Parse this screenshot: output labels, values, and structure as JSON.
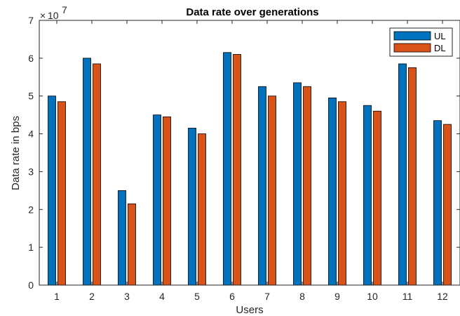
{
  "chart_data": {
    "type": "bar",
    "title": "Data rate over generations",
    "xlabel": "Users",
    "ylabel": "Data rate in bps",
    "y_exponent_base": "10",
    "y_exponent_power": "7",
    "y_exponent": 7,
    "categories": [
      "1",
      "2",
      "3",
      "4",
      "5",
      "6",
      "7",
      "8",
      "9",
      "10",
      "11",
      "12"
    ],
    "yticks": [
      "0",
      "1",
      "2",
      "3",
      "4",
      "5",
      "6",
      "7"
    ],
    "ylim": [
      0,
      7
    ],
    "legend_position": "top-right",
    "grid": false,
    "series": [
      {
        "name": "UL",
        "color": "#0072BD",
        "values": [
          5.0,
          6.0,
          2.5,
          4.5,
          4.15,
          6.15,
          5.25,
          5.35,
          4.95,
          4.75,
          5.85,
          4.35
        ]
      },
      {
        "name": "DL",
        "color": "#D95319",
        "values": [
          4.85,
          5.85,
          2.15,
          4.45,
          4.0,
          6.1,
          5.0,
          5.25,
          4.85,
          4.6,
          5.75,
          4.25
        ]
      }
    ]
  }
}
